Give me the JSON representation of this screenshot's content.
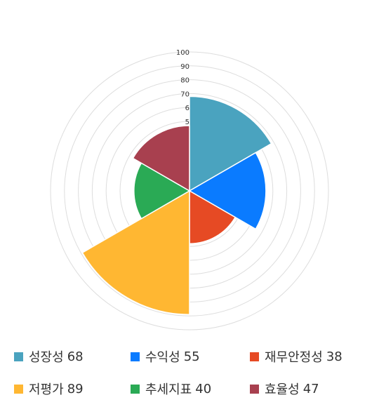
{
  "chart_data": {
    "type": "polar-area",
    "r_range": [
      0,
      100
    ],
    "tick_labels": [
      "5",
      "6",
      "70",
      "80",
      "90",
      "100"
    ],
    "categories": [
      "성장성",
      "수익성",
      "재무안정성",
      "저평가",
      "추세지표",
      "효율성"
    ],
    "values": [
      68,
      55,
      38,
      89,
      40,
      47
    ],
    "colors": [
      "#4aa3bf",
      "#0a7bff",
      "#e64a24",
      "#ffb732",
      "#2aaa55",
      "#a8404f"
    ],
    "order_clockwise_from_top": [
      "성장성",
      "수익성",
      "재무안정성",
      "저평가",
      "추세지표",
      "효율성"
    ],
    "grid": true,
    "legend_position": "bottom"
  }
}
